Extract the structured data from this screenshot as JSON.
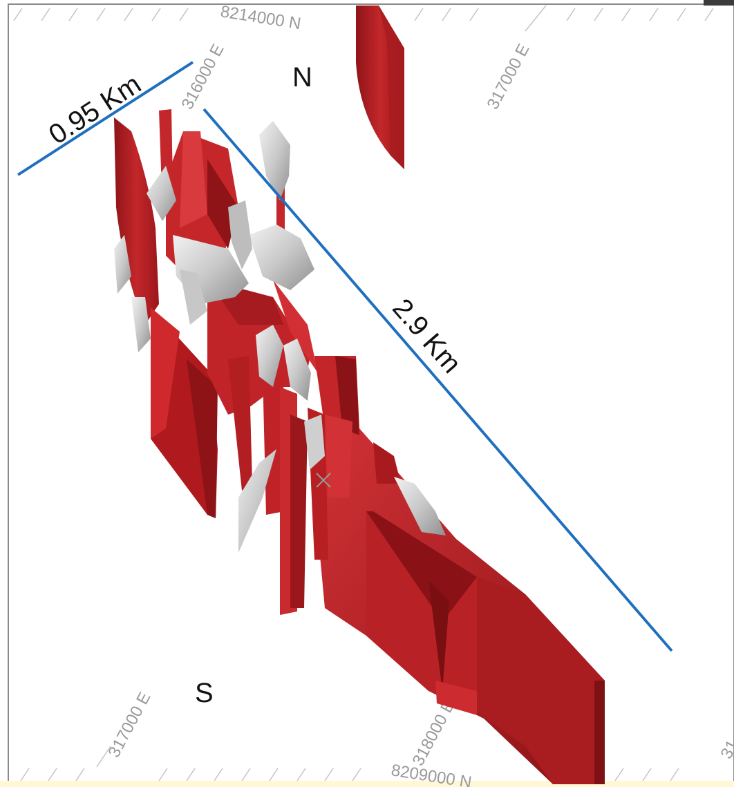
{
  "labels": {
    "north": "N",
    "south": "S"
  },
  "measurements": {
    "width": "0.95 Km",
    "length": "2.9 Km"
  },
  "coordinates": {
    "n_top": "8214000 N",
    "e_316000_top": "316000 E",
    "e_317000_top": "317000 E",
    "e_317000_bottom": "317000 E",
    "e_318000_bottom": "318000 E",
    "n_bottom": "8209000 N",
    "e_right_partial": "31"
  },
  "colors": {
    "ore_body_red": "#b51f24",
    "ore_body_dark": "#7e1114",
    "ore_body_light": "#d8393d",
    "lens_grey": "#cfcfcf",
    "measure_line_blue": "#1f6fbf",
    "grid_grey": "#bdbdbd",
    "bottom_band": "#fff7d6"
  }
}
